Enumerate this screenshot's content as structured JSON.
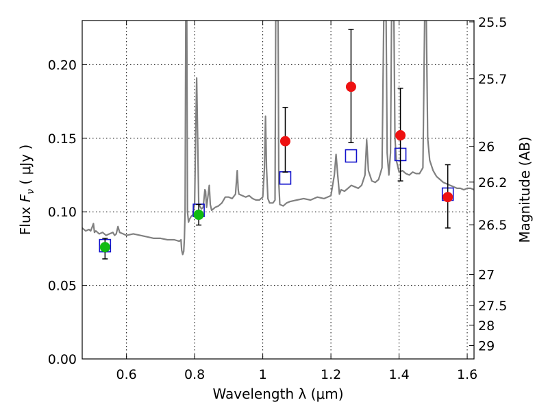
{
  "chart_data": {
    "type": "scatter",
    "xlabel": "Wavelength  λ (μm)",
    "ylabel_prefix": "Flux  ",
    "ylabel_symbol": "F",
    "ylabel_subscript": "ν",
    "ylabel_suffix": "  ( μJy )",
    "y2label": "Magnitude (AB)",
    "xlim": [
      0.47,
      1.62
    ],
    "ylim": [
      0.0,
      0.23
    ],
    "grid": true,
    "x_ticks": [
      0.6,
      0.8,
      1.0,
      1.2,
      1.4,
      1.6
    ],
    "x_tick_labels": [
      "0.6",
      "0.8",
      "1",
      "1.2",
      "1.4",
      "1.6"
    ],
    "y_ticks": [
      0.0,
      0.05,
      0.1,
      0.15,
      0.2
    ],
    "y_tick_labels": [
      "0.00",
      "0.05",
      "0.10",
      "0.15",
      "0.20"
    ],
    "y2_ticks": [
      {
        "label": "25.5",
        "flux": 0.2291
      },
      {
        "label": "25.7",
        "flux": 0.1905
      },
      {
        "label": "26",
        "flux": 0.1445
      },
      {
        "label": "26.2",
        "flux": 0.1202
      },
      {
        "label": "26.5",
        "flux": 0.0912
      },
      {
        "label": "27",
        "flux": 0.0575
      },
      {
        "label": "27.5",
        "flux": 0.0363
      },
      {
        "label": "28",
        "flux": 0.0229
      },
      {
        "label": "29",
        "flux": 0.0091
      }
    ],
    "colors": {
      "model": "#808080",
      "red": "#ee1111",
      "green": "#11bb11",
      "square": "#1111cc",
      "errorbar": "#000000"
    },
    "series": [
      {
        "kind": "model_spectrum",
        "points": [
          [
            0.47,
            0.089
          ],
          [
            0.48,
            0.087
          ],
          [
            0.49,
            0.088
          ],
          [
            0.495,
            0.087
          ],
          [
            0.5,
            0.09
          ],
          [
            0.503,
            0.092
          ],
          [
            0.506,
            0.086
          ],
          [
            0.51,
            0.087
          ],
          [
            0.52,
            0.085
          ],
          [
            0.53,
            0.086
          ],
          [
            0.54,
            0.084
          ],
          [
            0.55,
            0.085
          ],
          [
            0.56,
            0.086
          ],
          [
            0.565,
            0.084
          ],
          [
            0.57,
            0.085
          ],
          [
            0.575,
            0.09
          ],
          [
            0.58,
            0.086
          ],
          [
            0.59,
            0.085
          ],
          [
            0.6,
            0.084
          ],
          [
            0.62,
            0.085
          ],
          [
            0.64,
            0.084
          ],
          [
            0.66,
            0.083
          ],
          [
            0.68,
            0.082
          ],
          [
            0.7,
            0.082
          ],
          [
            0.72,
            0.081
          ],
          [
            0.74,
            0.081
          ],
          [
            0.755,
            0.08
          ],
          [
            0.76,
            0.081
          ],
          [
            0.762,
            0.074
          ],
          [
            0.765,
            0.071
          ],
          [
            0.768,
            0.073
          ],
          [
            0.77,
            0.082
          ],
          [
            0.772,
            0.1
          ],
          [
            0.774,
            0.23
          ],
          [
            0.777,
            0.23
          ],
          [
            0.779,
            0.1
          ],
          [
            0.782,
            0.093
          ],
          [
            0.785,
            0.095
          ],
          [
            0.79,
            0.097
          ],
          [
            0.795,
            0.098
          ],
          [
            0.8,
            0.105
          ],
          [
            0.803,
            0.15
          ],
          [
            0.806,
            0.191
          ],
          [
            0.809,
            0.15
          ],
          [
            0.812,
            0.105
          ],
          [
            0.82,
            0.102
          ],
          [
            0.825,
            0.103
          ],
          [
            0.83,
            0.115
          ],
          [
            0.832,
            0.114
          ],
          [
            0.835,
            0.103
          ],
          [
            0.84,
            0.112
          ],
          [
            0.843,
            0.118
          ],
          [
            0.846,
            0.105
          ],
          [
            0.85,
            0.101
          ],
          [
            0.86,
            0.103
          ],
          [
            0.87,
            0.104
          ],
          [
            0.88,
            0.106
          ],
          [
            0.89,
            0.11
          ],
          [
            0.9,
            0.11
          ],
          [
            0.91,
            0.109
          ],
          [
            0.92,
            0.112
          ],
          [
            0.925,
            0.128
          ],
          [
            0.928,
            0.115
          ],
          [
            0.93,
            0.112
          ],
          [
            0.94,
            0.111
          ],
          [
            0.95,
            0.11
          ],
          [
            0.96,
            0.111
          ],
          [
            0.97,
            0.109
          ],
          [
            0.98,
            0.108
          ],
          [
            0.99,
            0.108
          ],
          [
            1.0,
            0.11
          ],
          [
            1.005,
            0.13
          ],
          [
            1.008,
            0.165
          ],
          [
            1.011,
            0.13
          ],
          [
            1.015,
            0.109
          ],
          [
            1.02,
            0.106
          ],
          [
            1.03,
            0.106
          ],
          [
            1.036,
            0.108
          ],
          [
            1.038,
            0.23
          ],
          [
            1.045,
            0.23
          ],
          [
            1.047,
            0.12
          ],
          [
            1.05,
            0.105
          ],
          [
            1.06,
            0.104
          ],
          [
            1.07,
            0.106
          ],
          [
            1.08,
            0.107
          ],
          [
            1.1,
            0.108
          ],
          [
            1.12,
            0.109
          ],
          [
            1.14,
            0.108
          ],
          [
            1.16,
            0.11
          ],
          [
            1.18,
            0.109
          ],
          [
            1.2,
            0.111
          ],
          [
            1.21,
            0.125
          ],
          [
            1.215,
            0.139
          ],
          [
            1.22,
            0.125
          ],
          [
            1.225,
            0.112
          ],
          [
            1.23,
            0.115
          ],
          [
            1.24,
            0.114
          ],
          [
            1.25,
            0.116
          ],
          [
            1.26,
            0.118
          ],
          [
            1.27,
            0.117
          ],
          [
            1.28,
            0.116
          ],
          [
            1.29,
            0.118
          ],
          [
            1.3,
            0.125
          ],
          [
            1.305,
            0.149
          ],
          [
            1.31,
            0.128
          ],
          [
            1.32,
            0.121
          ],
          [
            1.33,
            0.12
          ],
          [
            1.34,
            0.122
          ],
          [
            1.35,
            0.13
          ],
          [
            1.355,
            0.23
          ],
          [
            1.362,
            0.23
          ],
          [
            1.365,
            0.14
          ],
          [
            1.37,
            0.125
          ],
          [
            1.375,
            0.14
          ],
          [
            1.378,
            0.23
          ],
          [
            1.385,
            0.23
          ],
          [
            1.388,
            0.15
          ],
          [
            1.392,
            0.135
          ],
          [
            1.4,
            0.127
          ],
          [
            1.41,
            0.128
          ],
          [
            1.42,
            0.126
          ],
          [
            1.43,
            0.125
          ],
          [
            1.44,
            0.127
          ],
          [
            1.45,
            0.126
          ],
          [
            1.46,
            0.126
          ],
          [
            1.47,
            0.13
          ],
          [
            1.475,
            0.23
          ],
          [
            1.48,
            0.23
          ],
          [
            1.484,
            0.15
          ],
          [
            1.49,
            0.135
          ],
          [
            1.5,
            0.128
          ],
          [
            1.51,
            0.124
          ],
          [
            1.52,
            0.122
          ],
          [
            1.53,
            0.12
          ],
          [
            1.54,
            0.119
          ],
          [
            1.55,
            0.118
          ],
          [
            1.56,
            0.117
          ],
          [
            1.57,
            0.116
          ],
          [
            1.58,
            0.116
          ],
          [
            1.59,
            0.115
          ],
          [
            1.6,
            0.116
          ],
          [
            1.61,
            0.116
          ],
          [
            1.62,
            0.115
          ]
        ]
      },
      {
        "kind": "model_photometry_squares",
        "x": [
          0.537,
          0.812,
          1.066,
          1.259,
          1.404,
          1.543
        ],
        "y": [
          0.077,
          0.101,
          0.123,
          0.138,
          0.139,
          0.112
        ]
      },
      {
        "kind": "observed_points",
        "points": [
          {
            "x": 0.537,
            "y": 0.076,
            "err_lo": 0.068,
            "err_hi": 0.082,
            "color": "green"
          },
          {
            "x": 0.812,
            "y": 0.098,
            "err_lo": 0.091,
            "err_hi": 0.105,
            "color": "green"
          },
          {
            "x": 1.066,
            "y": 0.148,
            "err_lo": 0.127,
            "err_hi": 0.171,
            "color": "red"
          },
          {
            "x": 1.259,
            "y": 0.185,
            "err_lo": 0.147,
            "err_hi": 0.224,
            "color": "red"
          },
          {
            "x": 1.404,
            "y": 0.152,
            "err_lo": 0.121,
            "err_hi": 0.184,
            "color": "red"
          },
          {
            "x": 1.543,
            "y": 0.11,
            "err_lo": 0.089,
            "err_hi": 0.132,
            "color": "red"
          }
        ]
      }
    ]
  }
}
